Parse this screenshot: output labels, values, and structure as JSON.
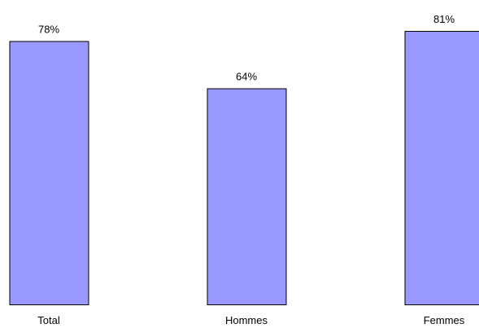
{
  "chart_data": {
    "type": "bar",
    "categories": [
      "Total",
      "Hommes",
      "Femmes"
    ],
    "values": [
      78,
      64,
      81
    ],
    "value_labels": [
      "78%",
      "64%",
      "81%"
    ],
    "unit": "%",
    "ylim": [
      0,
      81
    ],
    "grid": false,
    "legend": "none",
    "colors": {
      "bar_fill": "#9999ff",
      "bar_stroke": "#000000",
      "text": "#000000",
      "background": "#ffffff"
    }
  }
}
